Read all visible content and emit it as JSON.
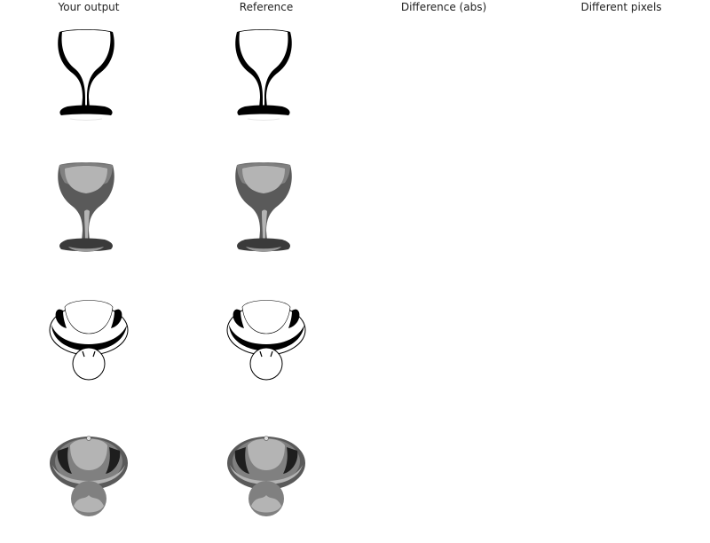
{
  "columns": [
    "Your output",
    "Reference",
    "Difference (abs)",
    "Different pixels"
  ],
  "rows": [
    {
      "style": "silhouette-side"
    },
    {
      "style": "shaded-side"
    },
    {
      "style": "silhouette-top"
    },
    {
      "style": "shaded-top"
    }
  ],
  "colors": {
    "black": "#000000",
    "dark_gray": "#4a4a4a",
    "mid_gray": "#808080",
    "light_gray": "#b4b4b4",
    "white": "#ffffff"
  }
}
